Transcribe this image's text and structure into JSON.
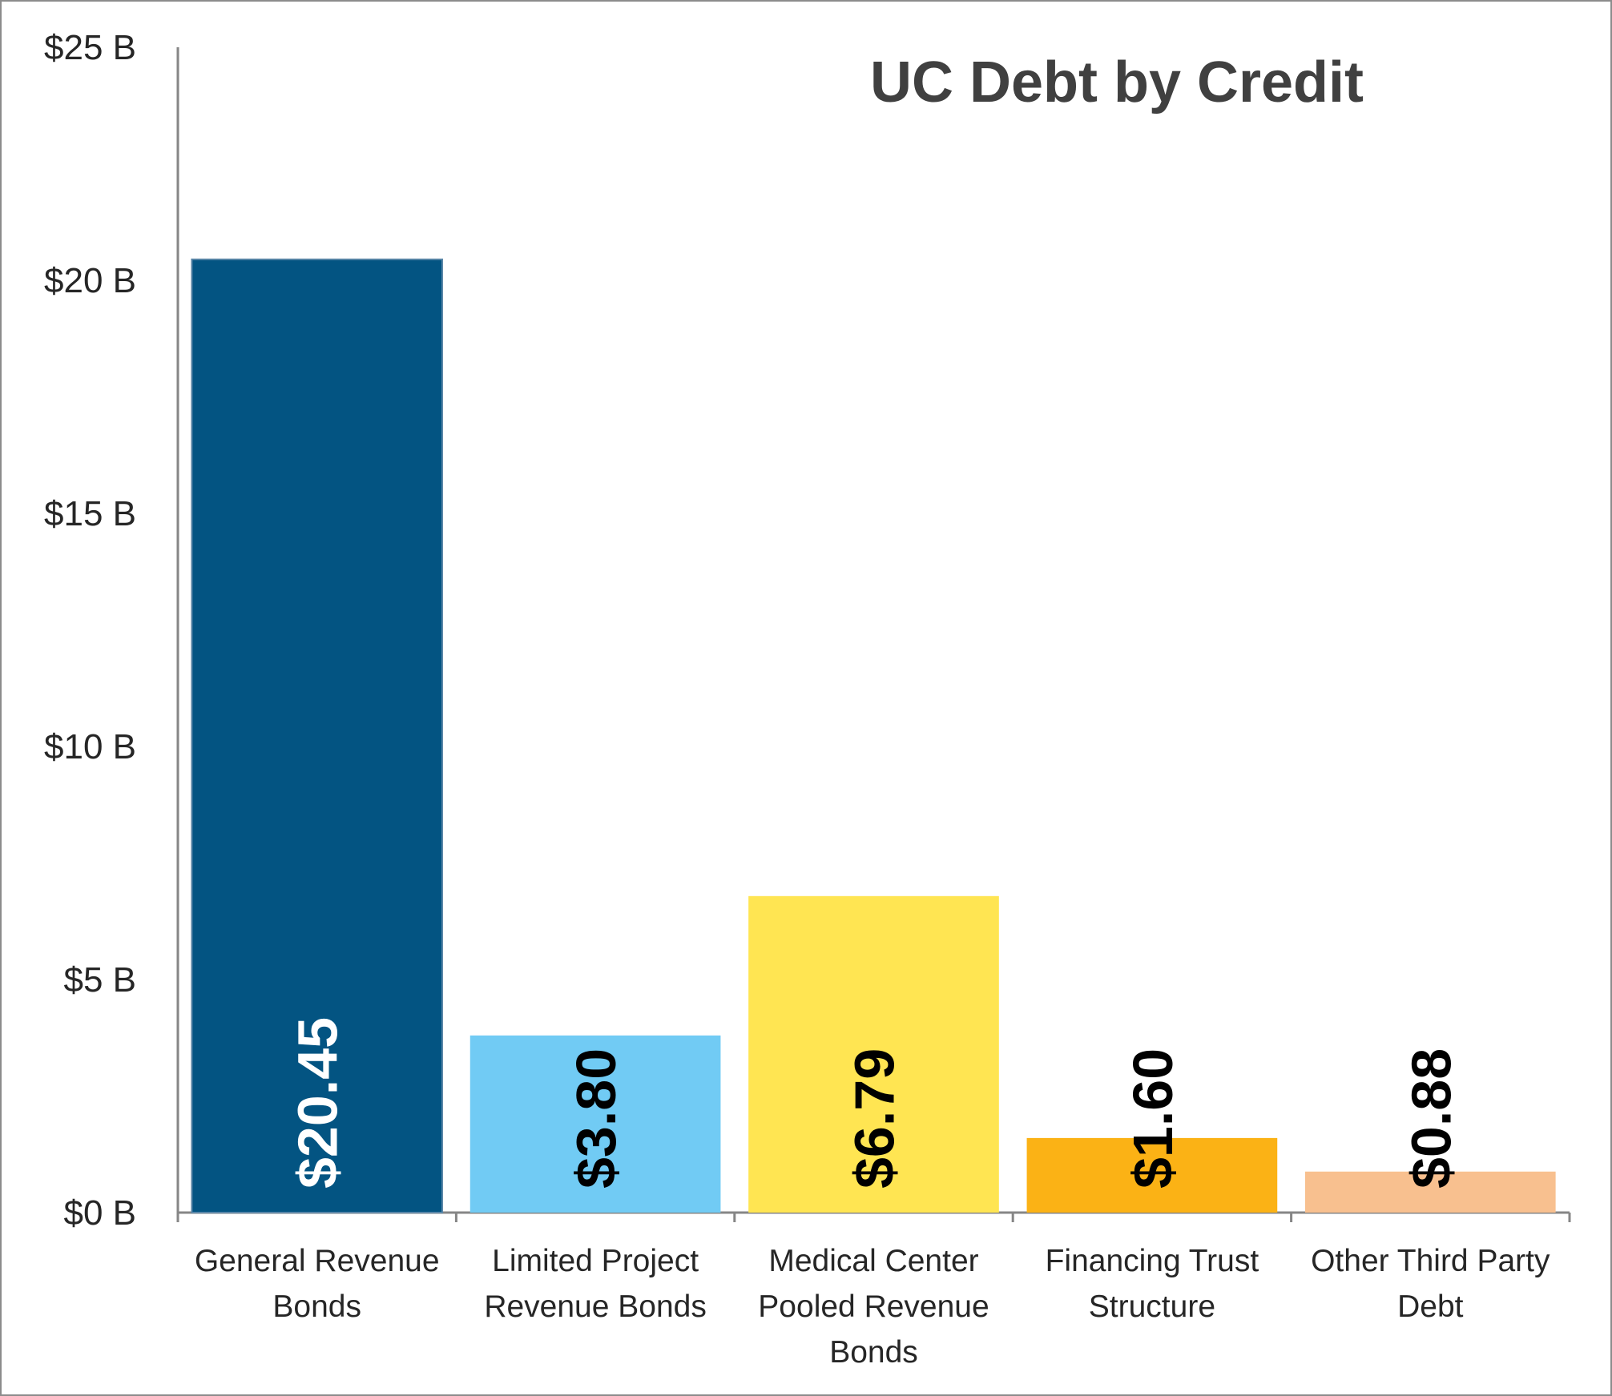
{
  "chart_data": {
    "type": "bar",
    "title": "UC Debt by Credit",
    "xlabel": "",
    "ylabel": "",
    "categories": [
      [
        "General Revenue",
        "Bonds"
      ],
      [
        "Limited Project",
        "Revenue Bonds"
      ],
      [
        "Medical Center",
        "Pooled Revenue",
        "Bonds"
      ],
      [
        "Financing Trust",
        "Structure"
      ],
      [
        "Other Third Party",
        "Debt"
      ]
    ],
    "values": [
      20.45,
      3.8,
      6.79,
      1.6,
      0.88
    ],
    "data_labels": [
      "$20.45",
      "$3.80",
      "$6.79",
      "$1.60",
      "$0.88"
    ],
    "colors": [
      "#035482",
      "#71CBF4",
      "#FFE552",
      "#FBB215",
      "#F8C08F"
    ],
    "label_colors": [
      "#ffffff",
      "#000000",
      "#000000",
      "#000000",
      "#000000"
    ],
    "ylim": [
      0,
      25
    ],
    "yticks": [
      0,
      5,
      10,
      15,
      20,
      25
    ],
    "ytick_labels": [
      "$0 B",
      "$5 B",
      "$10 B",
      "$15 B",
      "$20 B",
      "$25 B"
    ],
    "grid": false,
    "legend": "none"
  }
}
